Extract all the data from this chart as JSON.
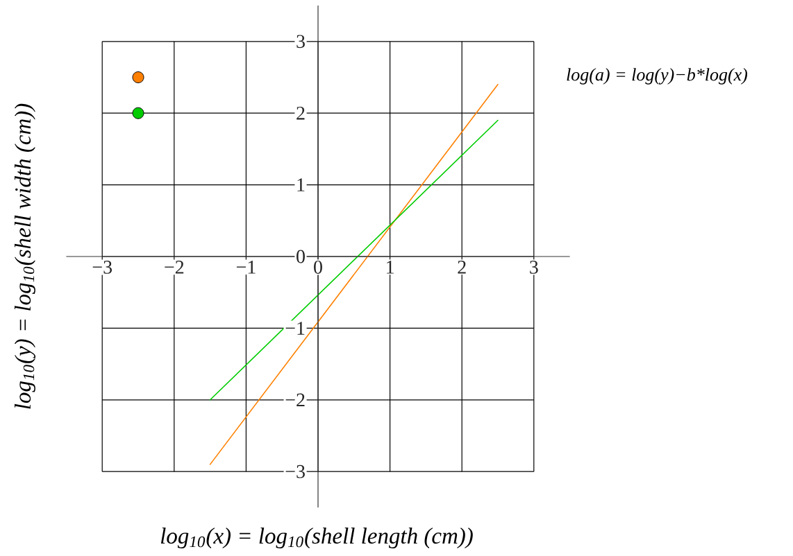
{
  "chart_data": {
    "type": "line",
    "xlabel": "log$_{10}$(x) = log$_{10}$(shell length (cm))",
    "ylabel": "log$_{10}$(y) = log$_{10}$(shell width (cm))",
    "annotations": [
      "log(a) = log(y)−b*log(x)"
    ],
    "series": [
      {
        "color": "#ff8000",
        "marker": "none",
        "x": [
          -1.5,
          2.5
        ],
        "values": [
          -2.9,
          2.4
        ]
      },
      {
        "color": "#00cc00",
        "marker": "none",
        "x": [
          -1.5,
          2.5
        ],
        "values": [
          -2.0,
          1.9
        ]
      },
      {
        "type": "scatter",
        "color": "#ff8000",
        "x": [
          -2.5
        ],
        "values": [
          2.5
        ]
      },
      {
        "type": "scatter",
        "color": "#00cc00",
        "x": [
          -2.5
        ],
        "values": [
          2.0
        ]
      }
    ],
    "xlim": [
      -3.5,
      3.5
    ],
    "ylim": [
      -3.5,
      3.5
    ],
    "xticks": [
      {
        "value": -3,
        "label": "−3"
      },
      {
        "value": -2,
        "label": "−2"
      },
      {
        "value": -1,
        "label": "−1"
      },
      0,
      1,
      2,
      3
    ],
    "yticks": [
      {
        "value": -3,
        "label": "−3"
      },
      {
        "value": -2,
        "label": "−2"
      },
      {
        "value": -1,
        "label": "−1"
      },
      0,
      1,
      2,
      3
    ],
    "grid": true,
    "marker": "circle"
  }
}
